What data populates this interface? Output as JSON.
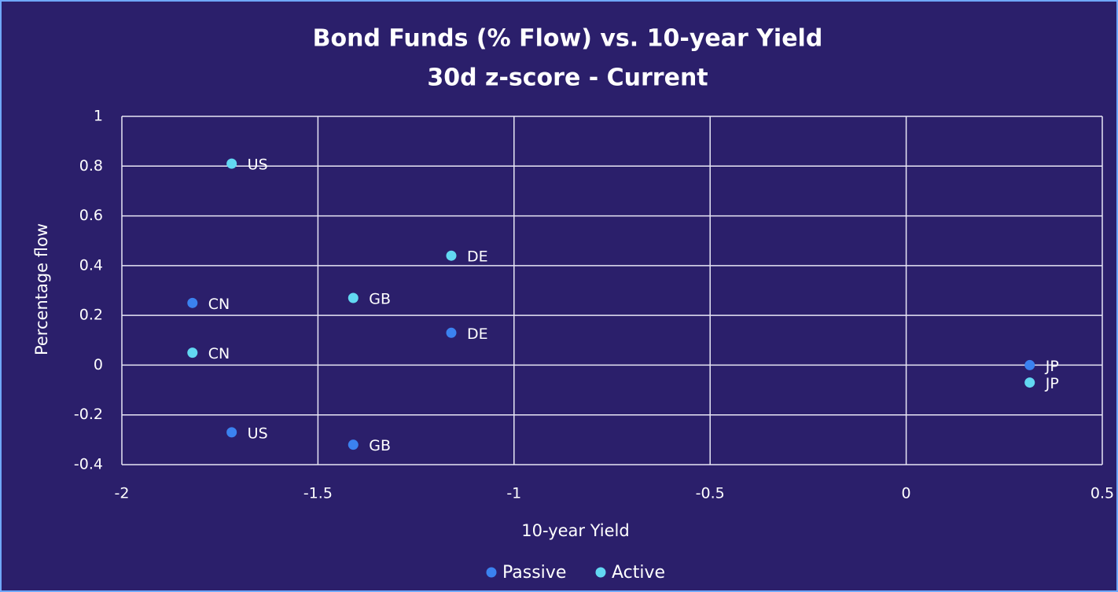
{
  "chart_data": {
    "type": "scatter",
    "title": "Bond Funds (% Flow) vs. 10-year Yield",
    "subtitle": "30d z-score - Current",
    "x_label": "10-year Yield",
    "y_label": "Percentage flow",
    "xlim": [
      -2,
      0.5
    ],
    "xticks": [
      -2,
      -1.5,
      -1,
      -0.5,
      0,
      0.5
    ],
    "ylim": [
      -0.4,
      1
    ],
    "yticks": [
      -0.4,
      -0.2,
      0,
      0.2,
      0.4,
      0.6,
      0.8,
      1
    ],
    "grid": true,
    "legend": "bottom",
    "series": [
      {
        "name": "Passive",
        "color": "#3b82f0",
        "x": [
          -1.82,
          -1.72,
          -1.41,
          -1.16,
          0.315
        ],
        "values": [
          0.25,
          -0.27,
          -0.32,
          0.13,
          0
        ],
        "labels": [
          "CN",
          "US",
          "GB",
          "DE",
          "JP"
        ]
      },
      {
        "name": "Active",
        "color": "#62d8f2",
        "x": [
          -1.72,
          -1.82,
          -1.41,
          -1.16,
          0.315
        ],
        "values": [
          0.81,
          0.05,
          0.27,
          0.44,
          -0.07
        ],
        "labels": [
          "US",
          "CN",
          "GB",
          "DE",
          "JP"
        ]
      }
    ]
  }
}
